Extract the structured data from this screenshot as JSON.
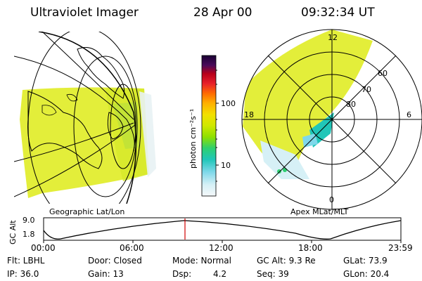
{
  "header": {
    "instrument": "Ultraviolet Imager",
    "date": "28 Apr 00",
    "time": "09:32:34 UT"
  },
  "colorbar": {
    "unit_label": "photon cm⁻²s⁻¹",
    "ticks": [
      "100",
      "10"
    ],
    "colors": [
      "#1a0033",
      "#4a0a5a",
      "#7a0a2a",
      "#b8001a",
      "#e8202a",
      "#ff6a00",
      "#ffb000",
      "#f2e000",
      "#cfe800",
      "#8ee000",
      "#2ed070",
      "#20c6b8",
      "#7fd8ea",
      "#d6f0f6",
      "#f4f8fa"
    ]
  },
  "left_panel": {
    "label": "Geographic Lat/Lon"
  },
  "right_panel": {
    "label": "Apex MLat/MLT",
    "mlt_labels": [
      "12",
      "18",
      "6",
      "0"
    ],
    "lat_labels": [
      "60",
      "70",
      "80"
    ]
  },
  "altitude_plot": {
    "ylabel": "GC Alt",
    "yticks": [
      "9.0",
      "1.8"
    ],
    "xticks": [
      "00:00",
      "06:00",
      "12:00",
      "18:00",
      "23:59"
    ],
    "marker_time": "09:32:34"
  },
  "footer": {
    "row1": [
      "Flt: LBHL",
      "Door: Closed",
      "Mode: Normal",
      "GC Alt: 9.3 Re",
      "GLat: 73.9"
    ],
    "row2": [
      "IP: 36.0",
      "Gain: 13",
      "Dsp:",
      "4.2",
      "Seq: 39",
      "GLon: 20.4"
    ]
  }
}
